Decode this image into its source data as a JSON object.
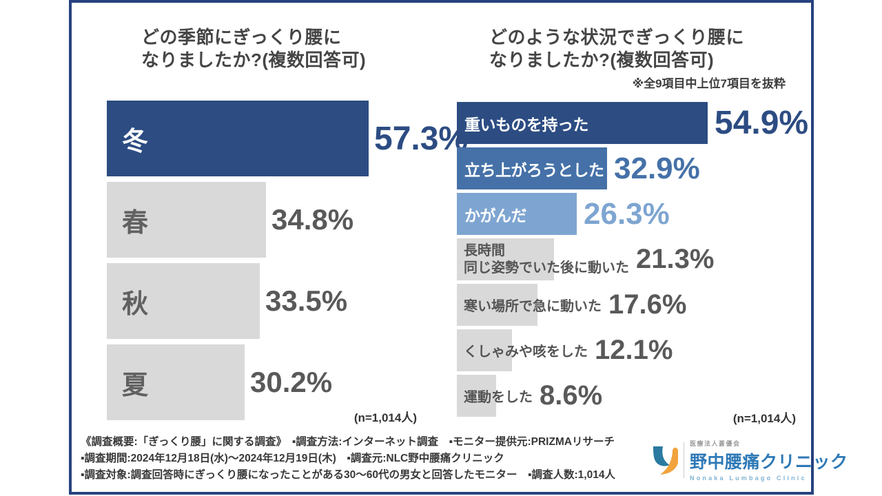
{
  "colors": {
    "frame_navy": "#27427e",
    "bar_navy": "#2c4c82",
    "bar_medium_blue": "#4571a8",
    "bar_light_blue": "#7ea5d1",
    "bar_gray": "#d9d9d9",
    "title_gray": "#454545",
    "value_gray": "#595959",
    "logo_blue": "#2e79b6",
    "logo_teal": "#2b7aa1",
    "logo_orange": "#f2a33d"
  },
  "chart_data": [
    {
      "type": "bar",
      "orientation": "horizontal",
      "title": "どの季節にぎっくり腰になりましたか?(複数回答可)",
      "title_lines": [
        "どの季節にぎっくり腰に",
        "なりましたか?(複数回答可)"
      ],
      "categories": [
        "冬",
        "春",
        "秋",
        "夏"
      ],
      "values": [
        57.3,
        34.8,
        33.5,
        30.2
      ],
      "value_labels": [
        "57.3%",
        "34.8%",
        "33.5%",
        "30.2%"
      ],
      "unit": "%",
      "n_label": "(n=1,014人)",
      "bar_colors": [
        "#2c4c82",
        "#d9d9d9",
        "#d9d9d9",
        "#d9d9d9"
      ],
      "xlim": [
        0,
        60
      ],
      "grid": false,
      "legend": false
    },
    {
      "type": "bar",
      "orientation": "horizontal",
      "title": "どのような状況でぎっくり腰になりましたか?(複数回答可)",
      "title_lines": [
        "どのような状況でぎっくり腰に",
        "なりましたか?(複数回答可)"
      ],
      "note": "※全9項目中上位7項目を抜粋",
      "categories": [
        "重いものを持った",
        "立ち上がろうとした",
        "かがんだ",
        "長時間同じ姿勢でいた後に動いた",
        "寒い場所で急に動いた",
        "くしゃみや咳をした",
        "運動をした"
      ],
      "category_lines": [
        [
          "重いものを持った"
        ],
        [
          "立ち上がろうとした"
        ],
        [
          "かがんだ"
        ],
        [
          "長時間",
          "同じ姿勢でいた後に動いた"
        ],
        [
          "寒い場所で急に動いた"
        ],
        [
          "くしゃみや咳をした"
        ],
        [
          "運動をした"
        ]
      ],
      "values": [
        54.9,
        32.9,
        26.3,
        21.3,
        17.6,
        12.1,
        8.6
      ],
      "value_labels": [
        "54.9%",
        "32.9%",
        "26.3%",
        "21.3%",
        "17.6%",
        "12.1%",
        "8.6%"
      ],
      "unit": "%",
      "n_label": "(n=1,014人)",
      "bar_colors": [
        "#2c4c82",
        "#4571a8",
        "#7ea5d1",
        "#d9d9d9",
        "#d9d9d9",
        "#d9d9d9",
        "#d9d9d9"
      ],
      "xlim": [
        0,
        60
      ],
      "grid": false,
      "legend": false
    }
  ],
  "footer": {
    "line1": "《調査概要:「ぎっくり腰」に関する調査》　▪調査方法:インターネット調査　▪モニター提供元:PRIZMAリサーチ",
    "line2": "▪調査期間:2024年12月18日(水)〜2024年12月19日(木)　▪調査元:NLC野中腰痛クリニック",
    "line3": "▪調査対象:調査回答時にぎっくり腰になったことがある30〜60代の男女と回答したモニター　▪調査人数:1,014人"
  },
  "logo": {
    "corporation": "医療法人蒼優会",
    "clinic_name": "野中腰痛クリニック",
    "clinic_name_en": "Nonaka Lumbago Clinic"
  }
}
